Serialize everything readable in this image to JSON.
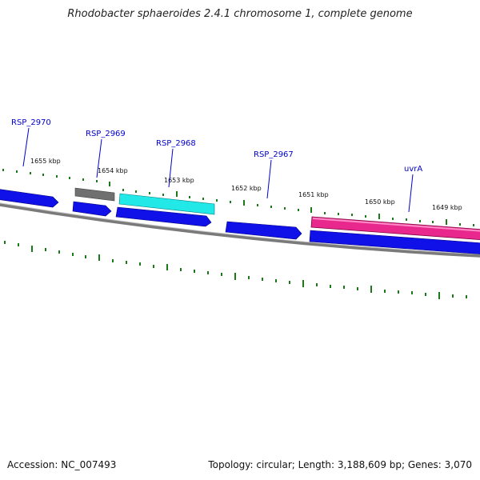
{
  "title": "Rhodobacter sphaeroides 2.4.1 chromosome 1, complete genome",
  "footer": {
    "accession": "Accession: NC_007493",
    "summary": "Topology: circular; Length: 3,188,609 bp; Genes: 3,070"
  },
  "colors": {
    "gene_blue": "#1010e8",
    "gene_gray": "#707070",
    "gene_cyan": "#22e8e8",
    "gene_pink": "#e8288c",
    "backbone": "#7a7a7a",
    "tick_green": "#1a7a1a",
    "label_blue": "#0000cc"
  },
  "scale": {
    "ticks": [
      {
        "label": "1655 kbp"
      },
      {
        "label": "1654 kbp"
      },
      {
        "label": "1653 kbp"
      },
      {
        "label": "1652 kbp"
      },
      {
        "label": "1651 kbp"
      },
      {
        "label": "1650 kbp"
      },
      {
        "label": "1649 kbp"
      }
    ]
  },
  "gene_labels": [
    {
      "name": "RSP_2970"
    },
    {
      "name": "RSP_2969"
    },
    {
      "name": "RSP_2968"
    },
    {
      "name": "RSP_2967"
    },
    {
      "name": "uvrA"
    }
  ]
}
